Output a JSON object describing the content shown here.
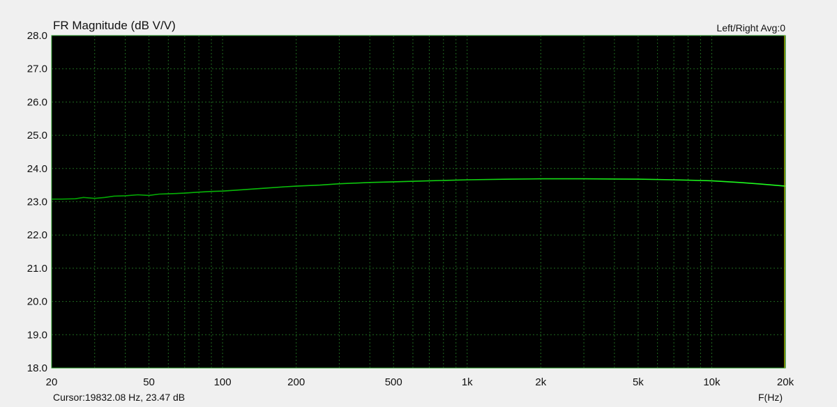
{
  "header": {
    "title": "FR Magnitude (dB V/V)",
    "legend": "Left/Right  Avg:0"
  },
  "footer": {
    "cursor": "Cursor:19832.08 Hz, 23.47 dB",
    "xunit": "F(Hz)"
  },
  "chart_data": {
    "type": "line",
    "title": "FR Magnitude (dB V/V)",
    "xlabel": "F(Hz)",
    "ylabel": "",
    "xscale": "log",
    "xlim": [
      20,
      20000
    ],
    "ylim": [
      18.0,
      28.0
    ],
    "grid": true,
    "legend": "top-right",
    "background": "#000000",
    "grid_color": "#1f6a1f",
    "x_ticks": [
      {
        "v": 20,
        "l": "20"
      },
      {
        "v": 50,
        "l": "50"
      },
      {
        "v": 100,
        "l": "100"
      },
      {
        "v": 200,
        "l": "200"
      },
      {
        "v": 500,
        "l": "500"
      },
      {
        "v": 1000,
        "l": "1k"
      },
      {
        "v": 2000,
        "l": "2k"
      },
      {
        "v": 5000,
        "l": "5k"
      },
      {
        "v": 10000,
        "l": "10k"
      },
      {
        "v": 20000,
        "l": "20k"
      }
    ],
    "y_ticks": [
      "18.0",
      "19.0",
      "20.0",
      "21.0",
      "22.0",
      "23.0",
      "24.0",
      "25.0",
      "26.0",
      "27.0",
      "28.0"
    ],
    "cursor": {
      "x": 19832.08,
      "y": 23.47,
      "color": "#c8c800"
    },
    "series": [
      {
        "color_low": "#00a000",
        "color_high": "#20ff20",
        "x": [
          20,
          22,
          25,
          27,
          30,
          33,
          36,
          40,
          45,
          50,
          55,
          60,
          70,
          80,
          90,
          100,
          120,
          150,
          180,
          200,
          250,
          300,
          400,
          500,
          700,
          1000,
          1500,
          2000,
          3000,
          5000,
          7000,
          10000,
          13000,
          16000,
          20000
        ],
        "y": [
          23.08,
          23.08,
          23.09,
          23.13,
          23.1,
          23.13,
          23.17,
          23.18,
          23.21,
          23.19,
          23.23,
          23.24,
          23.26,
          23.29,
          23.31,
          23.32,
          23.36,
          23.41,
          23.45,
          23.47,
          23.5,
          23.54,
          23.58,
          23.6,
          23.63,
          23.66,
          23.68,
          23.69,
          23.69,
          23.68,
          23.66,
          23.63,
          23.58,
          23.53,
          23.47
        ]
      }
    ]
  }
}
